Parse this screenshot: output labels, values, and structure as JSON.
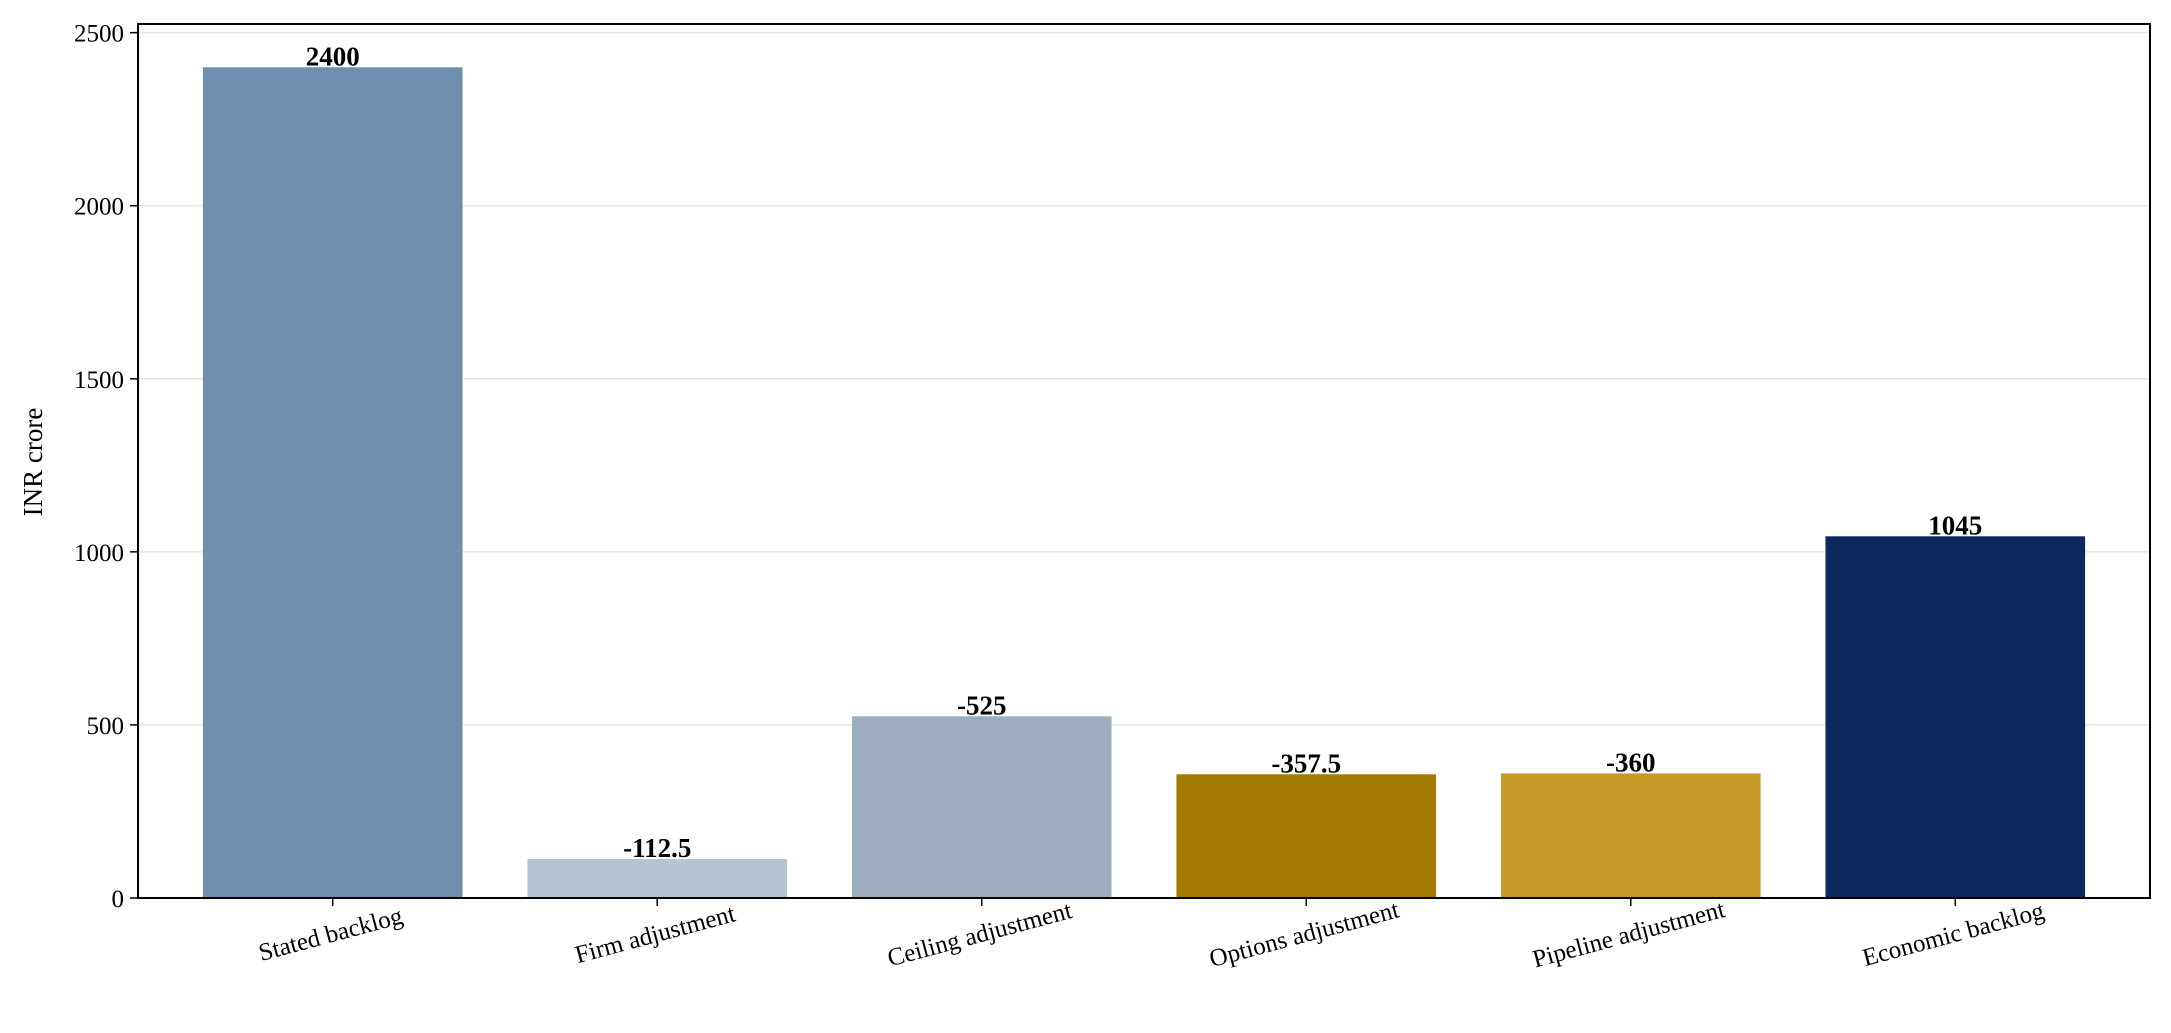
{
  "chart_data": {
    "type": "bar",
    "title": "",
    "xlabel": "",
    "ylabel": "INR crore",
    "ylim": [
      0,
      2525
    ],
    "yticks": [
      0,
      500,
      1000,
      1500,
      2000,
      2500
    ],
    "ytick_labels": [
      "0",
      "500",
      "1000",
      "1500",
      "2000",
      "2500"
    ],
    "grid": "horizontal",
    "categories": [
      "Stated backlog",
      "Firm adjustment",
      "Ceiling adjustment",
      "Options adjustment",
      "Pipeline adjustment",
      "Economic backlog"
    ],
    "values": [
      2400,
      112.5,
      525,
      357.5,
      360,
      1045
    ],
    "data_labels": [
      "2400",
      "-112.5",
      "-525",
      "-357.5",
      "-360",
      "1045"
    ],
    "colors": [
      "#6f8fae",
      "#b6c3d3",
      "#9dadbe",
      "#a57a02",
      "#c69a27",
      "#0b295c"
    ]
  }
}
